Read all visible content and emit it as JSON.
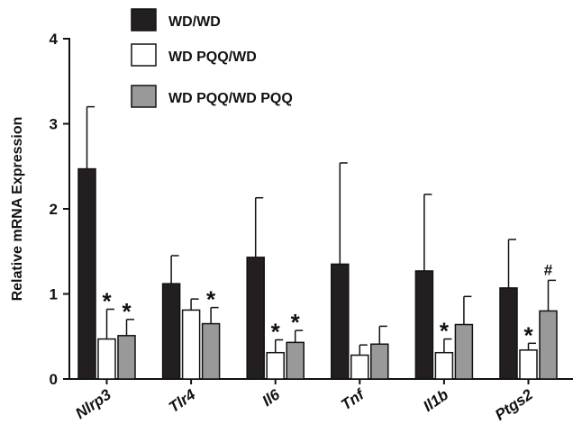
{
  "chart_data": {
    "type": "bar",
    "title": "",
    "xlabel": "",
    "ylabel": "Relative mRNA Expression",
    "ylim": [
      0,
      4
    ],
    "yticks": [
      "0",
      "1",
      "2",
      "3",
      "4"
    ],
    "grid": false,
    "legend_position": "top",
    "categories": [
      "Nlrp3",
      "Tlr4",
      "Il6",
      "Tnf",
      "Il1b",
      "Ptgs2"
    ],
    "series": [
      {
        "name": "WD/WD",
        "color": "#231f20",
        "values": [
          2.47,
          1.12,
          1.43,
          1.35,
          1.27,
          1.07
        ],
        "error": [
          0.73,
          0.33,
          0.7,
          1.19,
          0.9,
          0.57
        ],
        "annotations": [
          "",
          "",
          "",
          "",
          "",
          ""
        ]
      },
      {
        "name": "WD PQQ/WD",
        "color": "#ffffff",
        "values": [
          0.47,
          0.81,
          0.31,
          0.28,
          0.31,
          0.34
        ],
        "error": [
          0.35,
          0.13,
          0.15,
          0.12,
          0.16,
          0.08
        ],
        "annotations": [
          "*",
          "",
          "*",
          "",
          "*",
          "*"
        ]
      },
      {
        "name": "WD PQQ/WD PQQ",
        "color": "#999999",
        "values": [
          0.51,
          0.65,
          0.43,
          0.41,
          0.64,
          0.8
        ],
        "error": [
          0.19,
          0.19,
          0.14,
          0.21,
          0.33,
          0.36
        ],
        "annotations": [
          "*",
          "*",
          "*",
          "",
          "",
          "#"
        ]
      }
    ]
  }
}
